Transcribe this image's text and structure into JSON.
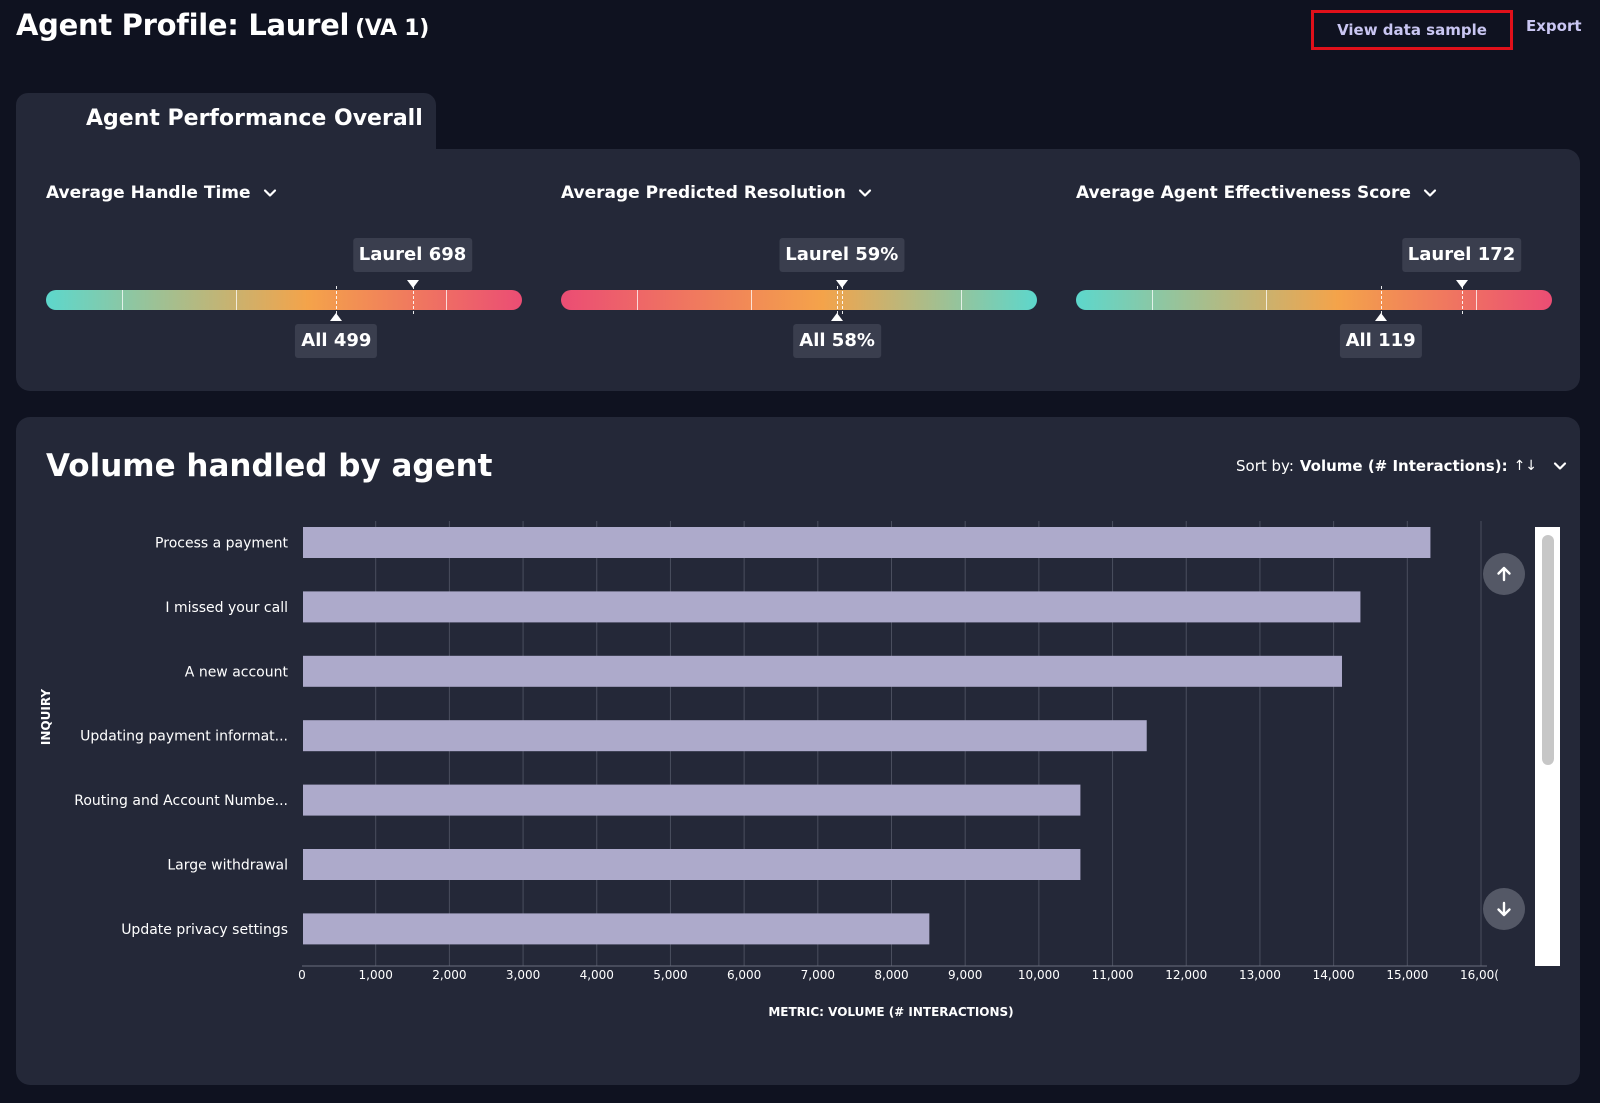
{
  "header": {
    "title": "Agent Profile: Laurel",
    "subtitle": "(VA 1)",
    "view_sample_label": "View data sample",
    "export_label": "Export"
  },
  "overall": {
    "tab_label": "Agent Performance Overall",
    "metrics": [
      {
        "title": "Average Handle Time",
        "agent_label": "Laurel 698",
        "all_label": "All 499",
        "agent_position": 0.77,
        "all_position": 0.61,
        "gradient": [
          "#5dd7cc",
          "#f4a34a",
          "#eb4d74"
        ]
      },
      {
        "title": "Average Predicted Resolution",
        "agent_label": "Laurel 59%",
        "all_label": "All 58%",
        "agent_position": 0.59,
        "all_position": 0.58,
        "gradient": [
          "#eb4d74",
          "#f4a34a",
          "#5dd7cc"
        ]
      },
      {
        "title": "Average Agent Effectiveness Score",
        "agent_label": "Laurel 172",
        "all_label": "All 119",
        "agent_position": 0.81,
        "all_position": 0.64,
        "gradient": [
          "#5dd7cc",
          "#f4a34a",
          "#eb4d74"
        ]
      }
    ]
  },
  "volume": {
    "title": "Volume handled by agent",
    "sort_prefix": "Sort by:",
    "sort_value": "Volume (# Interactions):",
    "sort_arrows": "↑↓"
  },
  "chart_data": {
    "type": "bar",
    "orientation": "horizontal",
    "categories": [
      "Process a payment",
      "I missed your call",
      "A new account",
      "Updating payment informat...",
      "Routing and Account Numbe...",
      "Large withdrawal",
      "Update privacy settings"
    ],
    "values": [
      15300,
      14350,
      14100,
      11450,
      10550,
      10550,
      8500
    ],
    "xlabel": "METRIC: VOLUME (# INTERACTIONS)",
    "ylabel": "INQUIRY",
    "xlim": [
      0,
      16000
    ],
    "xticks": [
      "0",
      "1,000",
      "2,000",
      "3,000",
      "4,000",
      "5,000",
      "6,000",
      "7,000",
      "8,000",
      "9,000",
      "10,000",
      "11,000",
      "12,000",
      "13,000",
      "14,000",
      "15,000",
      "16,00("
    ],
    "bar_color": "#adaacb",
    "grid": true
  },
  "colors": {
    "background": "#0f1220",
    "card": "#242838",
    "accent_link": "#c9c6f2",
    "highlight_border": "#e0101a"
  }
}
